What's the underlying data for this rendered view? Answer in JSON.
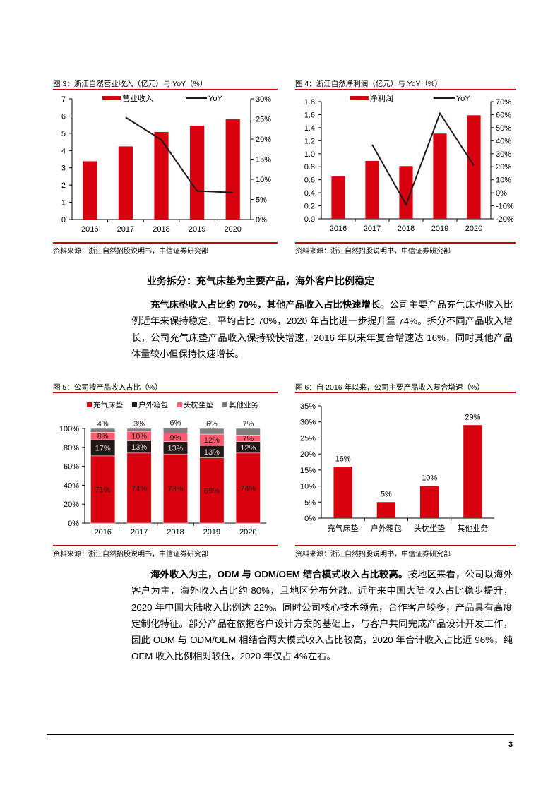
{
  "colors": {
    "accent": "#c00000",
    "bar_red": "#d7000f",
    "dark": "#231815",
    "pink": "#ff5a6e",
    "gray": "#7f7f7f"
  },
  "fig3": {
    "title": "图 3：浙江自然营业收入（亿元）与 YoY（%）",
    "source": "资料来源：浙江自然招股说明书，中信证券研究部",
    "chart_data": {
      "type": "bar+line",
      "categories": [
        "2016",
        "2017",
        "2018",
        "2019",
        "2020"
      ],
      "series": [
        {
          "name": "营业收入",
          "type": "bar",
          "axis": "left",
          "values": [
            3.38,
            4.24,
            5.08,
            5.44,
            5.81
          ]
        },
        {
          "name": "YoY",
          "type": "line",
          "axis": "right",
          "values": [
            null,
            25.4,
            19.8,
            7.1,
            6.7
          ]
        }
      ],
      "ylim": [
        0,
        7
      ],
      "yticks": [
        "0",
        "1",
        "2",
        "3",
        "4",
        "5",
        "6",
        "7"
      ],
      "y2lim": [
        0,
        30
      ],
      "y2ticks": [
        "0%",
        "5%",
        "10%",
        "15%",
        "20%",
        "25%",
        "30%"
      ],
      "legend": "top"
    }
  },
  "fig4": {
    "title": "图 4：浙江自然净利润（亿元）与 YoY（%）",
    "source": "资料来源：浙江自然招股说明书，中信证券研究部",
    "chart_data": {
      "type": "bar+line",
      "categories": [
        "2016",
        "2017",
        "2018",
        "2019",
        "2020"
      ],
      "series": [
        {
          "name": "净利润",
          "type": "bar",
          "axis": "left",
          "values": [
            0.65,
            0.89,
            0.81,
            1.31,
            1.59
          ]
        },
        {
          "name": "YoY",
          "type": "line",
          "axis": "right",
          "values": [
            null,
            37,
            -9,
            61,
            21
          ]
        }
      ],
      "ylim": [
        0,
        1.8
      ],
      "yticks": [
        "0.0",
        "0.2",
        "0.4",
        "0.6",
        "0.8",
        "1.0",
        "1.2",
        "1.4",
        "1.6",
        "1.8"
      ],
      "y2lim": [
        -20,
        70
      ],
      "y2ticks": [
        "-20%",
        "-10%",
        "0%",
        "10%",
        "20%",
        "30%",
        "40%",
        "50%",
        "60%",
        "70%"
      ],
      "legend": "top"
    }
  },
  "section": {
    "heading": "业务拆分：充气床垫为主要产品，海外客户比例稳定",
    "para1_bold": "充气床垫收入占比约 70%，其他产品收入占比快速增长。",
    "para1_text": "公司主要产品充气床垫收入比例近年来保持稳定，平均占比 70%，2020 年占比进一步提升至 74%。拆分不同产品收入增长，公司充气床垫产品收入保持较快增速，2016 年以来年复合增速达 16%，同时其他产品体量较小但保持快速增长。",
    "para2_bold": "海外收入为主，ODM 与 ODM/OEM 结合模式收入占比较高。",
    "para2_text": "按地区来看，公司以海外客户为主，海外收入占比约 80%，且地区分布分散。近年来中国大陆收入占比稳步提升，2020 年中国大陆收入比例达 22%。同时公司核心技术领先，合作客户较多，产品具有高度定制化特征。部分产品在依据客户设计方案的基础上，与客户共同完成产品设计开发工作，因此 ODM 与 ODM/OEM 相结合两大模式收入占比较高，2020 年合计收入占比近 96%，纯 OEM 收入比例相对较低，2020 年仅占 4%左右。"
  },
  "fig5": {
    "title": "图 5：公司按产品收入占比（%）",
    "source": "资料来源：浙江自然招股说明书，中信证券研究部",
    "chart_data": {
      "type": "stacked-bar",
      "categories": [
        "2016",
        "2017",
        "2018",
        "2019",
        "2020"
      ],
      "series": [
        {
          "name": "充气床垫",
          "values": [
            71,
            74,
            73,
            69,
            74
          ]
        },
        {
          "name": "户外箱包",
          "values": [
            17,
            13,
            13,
            13,
            12
          ]
        },
        {
          "name": "头枕坐垫",
          "values": [
            8,
            10,
            9,
            12,
            7
          ]
        },
        {
          "name": "其他业务",
          "values": [
            4,
            3,
            6,
            6,
            7
          ]
        }
      ],
      "ylim": [
        0,
        100
      ],
      "yticks": [
        "0%",
        "20%",
        "40%",
        "60%",
        "80%",
        "100%"
      ],
      "legend": "top"
    }
  },
  "fig6": {
    "title": "图 6：自 2016 年以来，公司主要产品收入复合增速（%）",
    "source": "资料来源：浙江自然招股说明书，中信证券研究部",
    "chart_data": {
      "type": "bar",
      "categories": [
        "充气床垫",
        "户外箱包",
        "头枕坐垫",
        "其他业务"
      ],
      "values": [
        16,
        5,
        10,
        29
      ],
      "labels": [
        "16%",
        "5%",
        "10%",
        "29%"
      ],
      "ylim": [
        0,
        35
      ],
      "yticks": [
        "0%",
        "5%",
        "10%",
        "15%",
        "20%",
        "25%",
        "30%",
        "35%"
      ]
    }
  },
  "page_number": "3"
}
